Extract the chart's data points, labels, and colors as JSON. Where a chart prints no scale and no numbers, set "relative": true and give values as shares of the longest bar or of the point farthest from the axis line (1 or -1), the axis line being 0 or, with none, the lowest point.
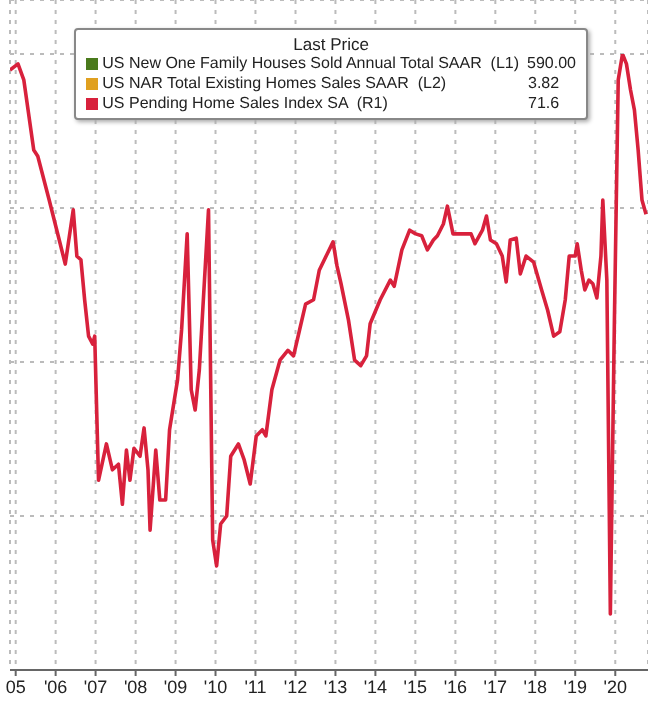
{
  "chart_data": {
    "type": "line",
    "relative": true,
    "legend_title": "Last Price",
    "legend": "top right",
    "grid": true,
    "marker": "none",
    "line_style": "solid",
    "xlim": [
      "2005-05-10",
      "2021-04-26"
    ],
    "xticks": [
      {
        "value": "2005-07",
        "label": "05"
      },
      {
        "value": "2006-07",
        "label": "'06"
      },
      {
        "value": "2007-07",
        "label": "'07"
      },
      {
        "value": "2008-07",
        "label": "'08"
      },
      {
        "value": "2009-07",
        "label": "'09"
      },
      {
        "value": "2010-07",
        "label": "'10"
      },
      {
        "value": "2011-07",
        "label": "'11"
      },
      {
        "value": "2012-07",
        "label": "'12"
      },
      {
        "value": "2013-07",
        "label": "'13"
      },
      {
        "value": "2014-07",
        "label": "'14"
      },
      {
        "value": "2015-07",
        "label": "'15"
      },
      {
        "value": "2016-07",
        "label": "'16"
      },
      {
        "value": "2017-07",
        "label": "'17"
      },
      {
        "value": "2018-07",
        "label": "'18"
      },
      {
        "value": "2019-07",
        "label": "'19"
      },
      {
        "value": "2020-07",
        "label": "'20"
      }
    ],
    "annotations": [
      "590.00",
      "3.82",
      "71.6"
    ],
    "x": [
      "2005-05-10",
      "2005-07-22",
      "2005-09-13",
      "2005-12-13",
      "2006-01-19",
      "2006-05-03",
      "2006-08-03",
      "2006-09-27",
      "2006-12-09",
      "2007-01-11",
      "2007-02-17",
      "2007-03-23",
      "2007-04-28",
      "2007-06-05",
      "2007-06-23",
      "2007-07-28",
      "2007-10-08",
      "2007-12-02",
      "2008-01-26",
      "2008-03-02",
      "2008-04-08",
      "2008-05-10",
      "2008-06-16",
      "2008-08-10",
      "2008-09-16",
      "2008-10-22",
      "2008-11-10",
      "2009-01-01",
      "2009-02-07",
      "2009-04-01",
      "2009-05-07",
      "2009-07-19",
      "2009-08-25",
      "2009-10-15",
      "2009-11-21",
      "2009-12-27",
      "2010-02-03",
      "2010-04-28",
      "2010-06-05",
      "2010-07-11",
      "2010-08-17",
      "2010-10-11",
      "2010-11-17",
      "2011-01-26",
      "2011-03-20",
      "2011-05-14",
      "2011-07-08",
      "2011-09-02",
      "2011-10-04",
      "2011-11-28",
      "2012-02-10",
      "2012-04-22",
      "2012-06-13",
      "2012-08-07",
      "2012-10-01",
      "2012-12-13",
      "2013-02-03",
      "2013-04-15",
      "2013-06-09",
      "2013-07-15",
      "2013-08-21",
      "2013-10-28",
      "2013-12-23",
      "2014-02-17",
      "2014-04-11",
      "2014-05-14",
      "2014-08-14",
      "2014-11-14",
      "2014-12-20",
      "2015-02-28",
      "2015-05-10",
      "2015-07-04",
      "2015-08-28",
      "2015-10-19",
      "2015-12-13",
      "2016-01-19",
      "2016-03-13",
      "2016-04-19",
      "2016-06-09",
      "2016-09-09",
      "2016-11-21",
      "2016-12-27",
      "2017-03-05",
      "2017-04-11",
      "2017-05-17",
      "2017-07-11",
      "2017-09-02",
      "2017-10-08",
      "2017-11-14",
      "2018-01-08",
      "2018-02-14",
      "2018-04-08",
      "2018-06-16",
      "2018-08-28",
      "2018-10-22",
      "2018-12-16",
      "2019-02-10",
      "2019-04-01",
      "2019-05-07",
      "2019-07-01",
      "2019-07-19",
      "2019-08-25",
      "2019-09-27",
      "2019-11-03",
      "2019-12-09",
      "2020-01-15",
      "2020-02-21",
      "2020-03-09",
      "2020-04-15",
      "2020-05-17",
      "2020-06-23",
      "2020-07-28",
      "2020-09-05",
      "2020-10-11",
      "2020-11-17",
      "2020-12-23",
      "2021-01-26",
      "2021-03-02",
      "2021-04-08"
    ],
    "series": [
      {
        "name": "US New One Family Houses Sold Annual Total SAAR  (L1)",
        "color": "#4a7a1c",
        "values": [
          null,
          null,
          null,
          null,
          null,
          null,
          null,
          null,
          null,
          null,
          null,
          null,
          null,
          null,
          null,
          null,
          null,
          null,
          null,
          null,
          null,
          null,
          null,
          null,
          null,
          null,
          null,
          null,
          null,
          null,
          null,
          null,
          null,
          null,
          null,
          null,
          null,
          null,
          null,
          null,
          null,
          null,
          null,
          null,
          null,
          null,
          null,
          null,
          null,
          null,
          null,
          null,
          null,
          null,
          null,
          null,
          null,
          null,
          null,
          null,
          null,
          null,
          null,
          null,
          null,
          null,
          null,
          null,
          null,
          null,
          null,
          null,
          null,
          null,
          null,
          null,
          null,
          null,
          null,
          null,
          null,
          null,
          null,
          null,
          null,
          null,
          null,
          null,
          null,
          null,
          null,
          null,
          null,
          null,
          null,
          null,
          null,
          null,
          null,
          null,
          null,
          null,
          null,
          null,
          null,
          null,
          null,
          null,
          null,
          null,
          null,
          null,
          null,
          null,
          null,
          null,
          null,
          null,
          null
        ]
      },
      {
        "name": "US NAR Total Existing Homes Sales SAAR  (L2)",
        "color": "#e0a020",
        "values": [
          null,
          null,
          null,
          null,
          null,
          null,
          null,
          null,
          null,
          null,
          null,
          null,
          null,
          null,
          null,
          null,
          null,
          null,
          null,
          null,
          null,
          null,
          null,
          null,
          null,
          null,
          null,
          null,
          null,
          null,
          null,
          null,
          null,
          null,
          null,
          null,
          null,
          null,
          null,
          null,
          null,
          null,
          null,
          null,
          null,
          null,
          null,
          null,
          null,
          null,
          null,
          null,
          null,
          null,
          null,
          null,
          null,
          null,
          null,
          null,
          null,
          null,
          null,
          null,
          null,
          null,
          null,
          null,
          null,
          null,
          null,
          null,
          null,
          null,
          null,
          null,
          null,
          null,
          null,
          null,
          null,
          null,
          null,
          null,
          null,
          null,
          null,
          null,
          null,
          null,
          null,
          null,
          null,
          null,
          null,
          null,
          null,
          null,
          null,
          null,
          null,
          null,
          null,
          null,
          null,
          null,
          null,
          null,
          null,
          null,
          null,
          null,
          null,
          null,
          null,
          null,
          null,
          null,
          null
        ]
      },
      {
        "name": "US Pending Home Sales Index SA  (R1)",
        "color": "#d8213c",
        "values": [
          0.974,
          0.984,
          0.958,
          0.844,
          0.834,
          0.763,
          0.698,
          0.659,
          0.747,
          0.672,
          0.666,
          0.601,
          0.542,
          0.529,
          0.542,
          0.308,
          0.367,
          0.325,
          0.334,
          0.269,
          0.357,
          0.308,
          0.36,
          0.347,
          0.393,
          0.325,
          0.227,
          0.357,
          0.276,
          0.276,
          0.39,
          0.471,
          0.552,
          0.708,
          0.455,
          0.422,
          0.487,
          0.747,
          0.211,
          0.169,
          0.237,
          0.25,
          0.347,
          0.367,
          0.341,
          0.302,
          0.38,
          0.39,
          0.38,
          0.455,
          0.503,
          0.519,
          0.51,
          0.552,
          0.594,
          0.601,
          0.649,
          0.675,
          0.695,
          0.656,
          0.627,
          0.568,
          0.503,
          0.494,
          0.51,
          0.562,
          0.601,
          0.633,
          0.623,
          0.682,
          0.714,
          0.708,
          0.705,
          0.682,
          0.698,
          0.705,
          0.724,
          0.753,
          0.708,
          0.708,
          0.708,
          0.692,
          0.714,
          0.737,
          0.698,
          0.692,
          0.672,
          0.63,
          0.698,
          0.701,
          0.643,
          0.672,
          0.662,
          0.617,
          0.584,
          0.542,
          0.549,
          0.601,
          0.672,
          0.672,
          0.692,
          0.649,
          0.617,
          0.633,
          0.627,
          0.604,
          0.672,
          0.763,
          0.633,
          0.091,
          0.568,
          0.958,
          1,
          0.984,
          0.942,
          0.909,
          0.844,
          0.763,
          0.74
        ]
      }
    ]
  }
}
